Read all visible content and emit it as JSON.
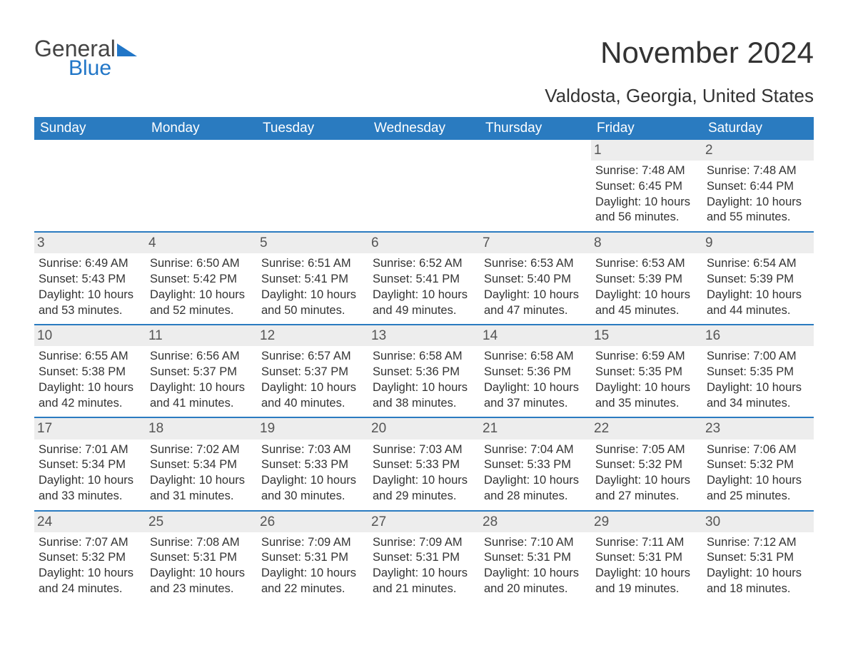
{
  "brand": {
    "part1": "General",
    "part2": "Blue"
  },
  "title": "November 2024",
  "location": "Valdosta, Georgia, United States",
  "weekdays": [
    "Sunday",
    "Monday",
    "Tuesday",
    "Wednesday",
    "Thursday",
    "Friday",
    "Saturday"
  ],
  "labels": {
    "sunrise": "Sunrise: ",
    "sunset": "Sunset: ",
    "daylight": "Daylight: "
  },
  "colors": {
    "header_bg": "#2a7bc0",
    "header_text": "#ffffff",
    "row_divider": "#2a7bc0",
    "daynum_bg": "#ededed",
    "text": "#333333",
    "brand_blue": "#2176c7"
  },
  "typography": {
    "title_fontsize": 42,
    "location_fontsize": 26,
    "weekday_fontsize": 19,
    "body_fontsize": 16.5,
    "logo_fontsize": 32
  },
  "weeks": [
    [
      {
        "day": "",
        "empty": true
      },
      {
        "day": "",
        "empty": true
      },
      {
        "day": "",
        "empty": true
      },
      {
        "day": "",
        "empty": true
      },
      {
        "day": "",
        "empty": true
      },
      {
        "day": "1",
        "sunrise": "7:48 AM",
        "sunset": "6:45 PM",
        "daylight": "10 hours and 56 minutes."
      },
      {
        "day": "2",
        "sunrise": "7:48 AM",
        "sunset": "6:44 PM",
        "daylight": "10 hours and 55 minutes."
      }
    ],
    [
      {
        "day": "3",
        "sunrise": "6:49 AM",
        "sunset": "5:43 PM",
        "daylight": "10 hours and 53 minutes."
      },
      {
        "day": "4",
        "sunrise": "6:50 AM",
        "sunset": "5:42 PM",
        "daylight": "10 hours and 52 minutes."
      },
      {
        "day": "5",
        "sunrise": "6:51 AM",
        "sunset": "5:41 PM",
        "daylight": "10 hours and 50 minutes."
      },
      {
        "day": "6",
        "sunrise": "6:52 AM",
        "sunset": "5:41 PM",
        "daylight": "10 hours and 49 minutes."
      },
      {
        "day": "7",
        "sunrise": "6:53 AM",
        "sunset": "5:40 PM",
        "daylight": "10 hours and 47 minutes."
      },
      {
        "day": "8",
        "sunrise": "6:53 AM",
        "sunset": "5:39 PM",
        "daylight": "10 hours and 45 minutes."
      },
      {
        "day": "9",
        "sunrise": "6:54 AM",
        "sunset": "5:39 PM",
        "daylight": "10 hours and 44 minutes."
      }
    ],
    [
      {
        "day": "10",
        "sunrise": "6:55 AM",
        "sunset": "5:38 PM",
        "daylight": "10 hours and 42 minutes."
      },
      {
        "day": "11",
        "sunrise": "6:56 AM",
        "sunset": "5:37 PM",
        "daylight": "10 hours and 41 minutes."
      },
      {
        "day": "12",
        "sunrise": "6:57 AM",
        "sunset": "5:37 PM",
        "daylight": "10 hours and 40 minutes."
      },
      {
        "day": "13",
        "sunrise": "6:58 AM",
        "sunset": "5:36 PM",
        "daylight": "10 hours and 38 minutes."
      },
      {
        "day": "14",
        "sunrise": "6:58 AM",
        "sunset": "5:36 PM",
        "daylight": "10 hours and 37 minutes."
      },
      {
        "day": "15",
        "sunrise": "6:59 AM",
        "sunset": "5:35 PM",
        "daylight": "10 hours and 35 minutes."
      },
      {
        "day": "16",
        "sunrise": "7:00 AM",
        "sunset": "5:35 PM",
        "daylight": "10 hours and 34 minutes."
      }
    ],
    [
      {
        "day": "17",
        "sunrise": "7:01 AM",
        "sunset": "5:34 PM",
        "daylight": "10 hours and 33 minutes."
      },
      {
        "day": "18",
        "sunrise": "7:02 AM",
        "sunset": "5:34 PM",
        "daylight": "10 hours and 31 minutes."
      },
      {
        "day": "19",
        "sunrise": "7:03 AM",
        "sunset": "5:33 PM",
        "daylight": "10 hours and 30 minutes."
      },
      {
        "day": "20",
        "sunrise": "7:03 AM",
        "sunset": "5:33 PM",
        "daylight": "10 hours and 29 minutes."
      },
      {
        "day": "21",
        "sunrise": "7:04 AM",
        "sunset": "5:33 PM",
        "daylight": "10 hours and 28 minutes."
      },
      {
        "day": "22",
        "sunrise": "7:05 AM",
        "sunset": "5:32 PM",
        "daylight": "10 hours and 27 minutes."
      },
      {
        "day": "23",
        "sunrise": "7:06 AM",
        "sunset": "5:32 PM",
        "daylight": "10 hours and 25 minutes."
      }
    ],
    [
      {
        "day": "24",
        "sunrise": "7:07 AM",
        "sunset": "5:32 PM",
        "daylight": "10 hours and 24 minutes."
      },
      {
        "day": "25",
        "sunrise": "7:08 AM",
        "sunset": "5:31 PM",
        "daylight": "10 hours and 23 minutes."
      },
      {
        "day": "26",
        "sunrise": "7:09 AM",
        "sunset": "5:31 PM",
        "daylight": "10 hours and 22 minutes."
      },
      {
        "day": "27",
        "sunrise": "7:09 AM",
        "sunset": "5:31 PM",
        "daylight": "10 hours and 21 minutes."
      },
      {
        "day": "28",
        "sunrise": "7:10 AM",
        "sunset": "5:31 PM",
        "daylight": "10 hours and 20 minutes."
      },
      {
        "day": "29",
        "sunrise": "7:11 AM",
        "sunset": "5:31 PM",
        "daylight": "10 hours and 19 minutes."
      },
      {
        "day": "30",
        "sunrise": "7:12 AM",
        "sunset": "5:31 PM",
        "daylight": "10 hours and 18 minutes."
      }
    ]
  ]
}
